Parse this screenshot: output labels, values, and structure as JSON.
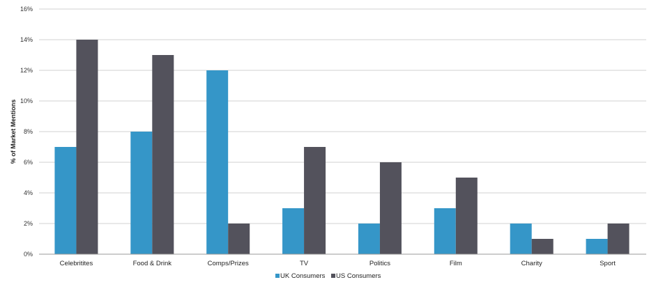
{
  "chart_data": {
    "type": "bar",
    "title": "",
    "xlabel": "",
    "ylabel": "% of Market Mentions",
    "categories": [
      "Celebritites",
      "Food & Drink",
      "Comps/Prizes",
      "TV",
      "Politics",
      "Film",
      "Charity",
      "Sport"
    ],
    "series": [
      {
        "name": "UK Consumers",
        "color": "#3596c8",
        "values": [
          7,
          8,
          12,
          3,
          2,
          3,
          2,
          1
        ]
      },
      {
        "name": "US Consumers",
        "color": "#53525c",
        "values": [
          14,
          13,
          2,
          7,
          6,
          5,
          1,
          2
        ]
      }
    ],
    "ylim": [
      0,
      16
    ],
    "yticks": [
      0,
      2,
      4,
      6,
      8,
      10,
      12,
      14,
      16
    ],
    "ytick_labels": [
      "0%",
      "2%",
      "4%",
      "6%",
      "8%",
      "10%",
      "12%",
      "14%",
      "16%"
    ],
    "grid": true,
    "legend_position": "bottom"
  }
}
